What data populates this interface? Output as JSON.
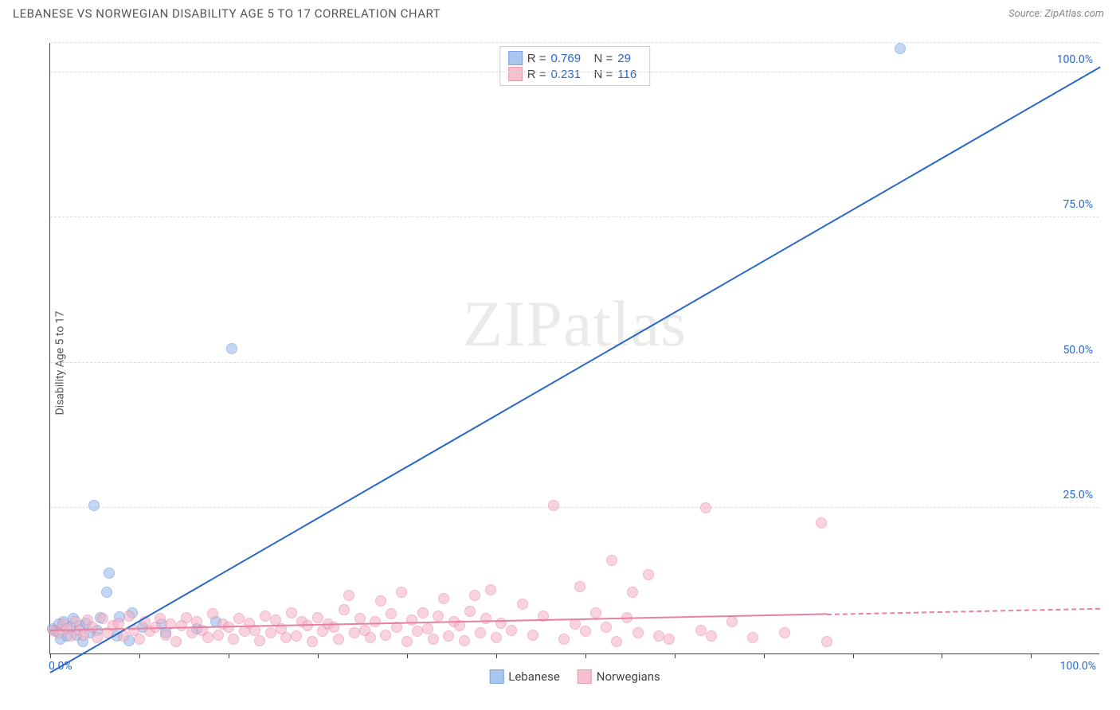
{
  "title": "LEBANESE VS NORWEGIAN DISABILITY AGE 5 TO 17 CORRELATION CHART",
  "source": "Source: ZipAtlas.com",
  "watermark": "ZIPatlas",
  "chart": {
    "type": "scatter",
    "ylabel": "Disability Age 5 to 17",
    "xlim": [
      0,
      100
    ],
    "ylim": [
      0,
      105
    ],
    "xtick_step_pct": 8.5,
    "ytick_values": [
      25,
      50,
      75,
      100
    ],
    "ytick_labels": [
      "25.0%",
      "50.0%",
      "75.0%",
      "100.0%"
    ],
    "x_origin_label": "0.0%",
    "x_max_label": "100.0%",
    "background_color": "#ffffff",
    "grid_color": "#dddddd",
    "axis_color": "#444444",
    "marker_radius": 7,
    "marker_stroke_width": 1.2,
    "series": [
      {
        "name": "Lebanese",
        "fill": "#93b8ec",
        "stroke": "#5b8fd6",
        "fill_opacity": 0.55,
        "R": "0.769",
        "N": "29",
        "trend": {
          "x1": 0,
          "y1": -3,
          "x2": 100,
          "y2": 101,
          "color": "#2968c8",
          "dash_after_x": null
        },
        "points": [
          [
            0.2,
            4.2
          ],
          [
            0.5,
            3.8
          ],
          [
            0.8,
            5.0
          ],
          [
            1.0,
            2.5
          ],
          [
            1.3,
            5.5
          ],
          [
            1.6,
            3.0
          ],
          [
            1.9,
            4.5
          ],
          [
            2.2,
            6.0
          ],
          [
            2.5,
            3.2
          ],
          [
            2.8,
            4.8
          ],
          [
            3.1,
            2.0
          ],
          [
            3.4,
            5.2
          ],
          [
            3.8,
            3.6
          ],
          [
            4.2,
            25.5
          ],
          [
            4.5,
            4.0
          ],
          [
            4.8,
            6.2
          ],
          [
            5.4,
            10.5
          ],
          [
            5.6,
            13.8
          ],
          [
            6.4,
            3.0
          ],
          [
            6.6,
            6.3
          ],
          [
            7.5,
            2.2
          ],
          [
            7.8,
            7.0
          ],
          [
            8.8,
            4.5
          ],
          [
            10.6,
            5.0
          ],
          [
            11.0,
            3.5
          ],
          [
            14.0,
            4.2
          ],
          [
            15.8,
            5.5
          ],
          [
            17.3,
            52.5
          ],
          [
            81.0,
            104.0
          ]
        ]
      },
      {
        "name": "Norwegians",
        "fill": "#f3b0c2",
        "stroke": "#e681a0",
        "fill_opacity": 0.55,
        "R": "0.231",
        "N": "116",
        "trend": {
          "x1": 0,
          "y1": 4.2,
          "x2": 100,
          "y2": 8.0,
          "color": "#e681a0",
          "dash_after_x": 74
        },
        "points": [
          [
            0.3,
            4.0
          ],
          [
            0.8,
            3.5
          ],
          [
            1.2,
            5.0
          ],
          [
            1.6,
            4.2
          ],
          [
            2.0,
            3.0
          ],
          [
            2.4,
            5.5
          ],
          [
            2.8,
            4.0
          ],
          [
            3.2,
            3.2
          ],
          [
            3.6,
            5.8
          ],
          [
            4.0,
            4.5
          ],
          [
            4.5,
            2.8
          ],
          [
            5.0,
            6.0
          ],
          [
            5.5,
            3.5
          ],
          [
            6.0,
            4.8
          ],
          [
            6.5,
            5.2
          ],
          [
            7.0,
            3.0
          ],
          [
            7.5,
            6.5
          ],
          [
            8.0,
            4.0
          ],
          [
            8.5,
            2.5
          ],
          [
            9.0,
            5.5
          ],
          [
            9.5,
            3.8
          ],
          [
            10.0,
            4.5
          ],
          [
            10.5,
            6.0
          ],
          [
            11.0,
            3.2
          ],
          [
            11.5,
            5.0
          ],
          [
            12.0,
            2.0
          ],
          [
            12.5,
            4.8
          ],
          [
            13.0,
            6.2
          ],
          [
            13.5,
            3.5
          ],
          [
            14.0,
            5.5
          ],
          [
            14.5,
            4.0
          ],
          [
            15.0,
            2.8
          ],
          [
            15.5,
            6.8
          ],
          [
            16.0,
            3.2
          ],
          [
            16.5,
            5.0
          ],
          [
            17.0,
            4.5
          ],
          [
            17.5,
            2.5
          ],
          [
            18.0,
            6.0
          ],
          [
            18.5,
            3.8
          ],
          [
            19.0,
            5.2
          ],
          [
            19.5,
            4.0
          ],
          [
            20.0,
            2.2
          ],
          [
            20.5,
            6.5
          ],
          [
            21.0,
            3.5
          ],
          [
            21.5,
            5.8
          ],
          [
            22.0,
            4.2
          ],
          [
            22.5,
            2.8
          ],
          [
            23.0,
            7.0
          ],
          [
            23.5,
            3.0
          ],
          [
            24.0,
            5.5
          ],
          [
            24.5,
            4.8
          ],
          [
            25.0,
            2.0
          ],
          [
            25.5,
            6.2
          ],
          [
            26.0,
            3.8
          ],
          [
            26.5,
            5.0
          ],
          [
            27.0,
            4.5
          ],
          [
            27.5,
            2.5
          ],
          [
            28.0,
            7.5
          ],
          [
            28.5,
            10.0
          ],
          [
            29.0,
            3.5
          ],
          [
            29.5,
            6.0
          ],
          [
            30.0,
            4.0
          ],
          [
            30.5,
            2.8
          ],
          [
            31.0,
            5.5
          ],
          [
            31.5,
            9.0
          ],
          [
            32.0,
            3.2
          ],
          [
            32.5,
            6.8
          ],
          [
            33.0,
            4.5
          ],
          [
            33.5,
            10.5
          ],
          [
            34.0,
            2.0
          ],
          [
            34.5,
            5.8
          ],
          [
            35.0,
            3.8
          ],
          [
            35.5,
            7.0
          ],
          [
            36.0,
            4.2
          ],
          [
            36.5,
            2.5
          ],
          [
            37.0,
            6.5
          ],
          [
            37.5,
            9.5
          ],
          [
            38.0,
            3.0
          ],
          [
            38.5,
            5.5
          ],
          [
            39.0,
            4.8
          ],
          [
            39.5,
            2.2
          ],
          [
            40.0,
            7.2
          ],
          [
            40.5,
            10.0
          ],
          [
            41.0,
            3.5
          ],
          [
            41.5,
            6.0
          ],
          [
            42.0,
            11.0
          ],
          [
            42.5,
            2.8
          ],
          [
            43.0,
            5.2
          ],
          [
            44.0,
            4.0
          ],
          [
            45.0,
            8.5
          ],
          [
            46.0,
            3.2
          ],
          [
            47.0,
            6.5
          ],
          [
            48.0,
            25.5
          ],
          [
            49.0,
            2.5
          ],
          [
            50.0,
            5.0
          ],
          [
            50.5,
            11.5
          ],
          [
            51.0,
            3.8
          ],
          [
            52.0,
            7.0
          ],
          [
            53.0,
            4.5
          ],
          [
            53.5,
            16.0
          ],
          [
            54.0,
            2.0
          ],
          [
            55.0,
            6.2
          ],
          [
            55.5,
            10.5
          ],
          [
            56.0,
            3.5
          ],
          [
            57.0,
            13.5
          ],
          [
            58.0,
            3.0
          ],
          [
            59.0,
            2.5
          ],
          [
            62.0,
            4.0
          ],
          [
            62.5,
            25.0
          ],
          [
            63.0,
            3.0
          ],
          [
            65.0,
            5.5
          ],
          [
            67.0,
            2.8
          ],
          [
            70.0,
            3.5
          ],
          [
            73.5,
            22.5
          ],
          [
            74.0,
            2.0
          ]
        ]
      }
    ],
    "legend_bottom": [
      {
        "label": "Lebanese",
        "fill": "#93b8ec",
        "stroke": "#5b8fd6"
      },
      {
        "label": "Norwegians",
        "fill": "#f3b0c2",
        "stroke": "#e681a0"
      }
    ]
  }
}
